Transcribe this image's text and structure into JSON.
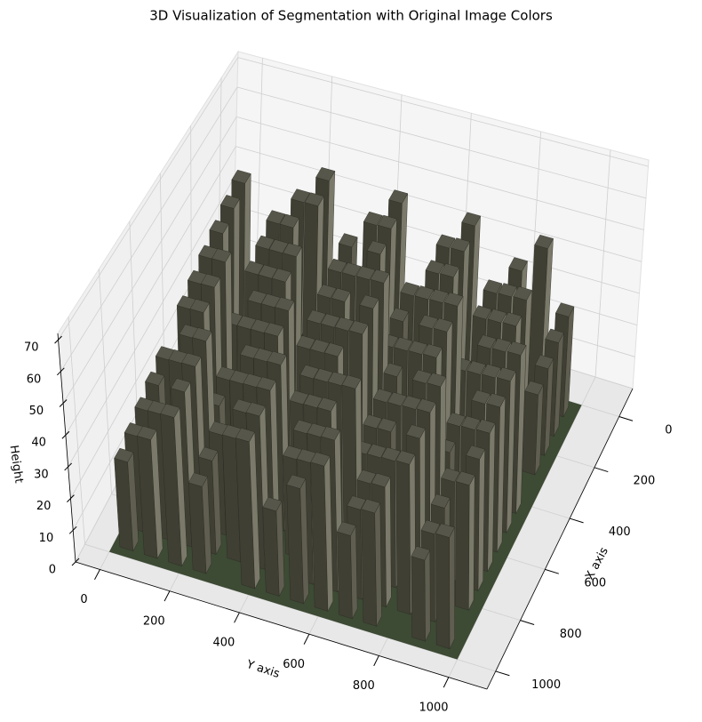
{
  "chart_data": {
    "type": "surface3d",
    "title": "3D Visualization of Segmentation with Original Image Colors",
    "xlabel": "X axis",
    "ylabel": "Y axis",
    "zlabel": "Height",
    "xlim": [
      -110,
      1070
    ],
    "ylim": [
      -70,
      1110
    ],
    "zlim": [
      0,
      72
    ],
    "xticks": [
      0,
      200,
      400,
      600,
      800,
      1000
    ],
    "yticks": [
      0,
      200,
      400,
      600,
      800,
      1000
    ],
    "zticks": [
      0,
      10,
      20,
      30,
      40,
      50,
      60,
      70
    ],
    "grid": true
  }
}
